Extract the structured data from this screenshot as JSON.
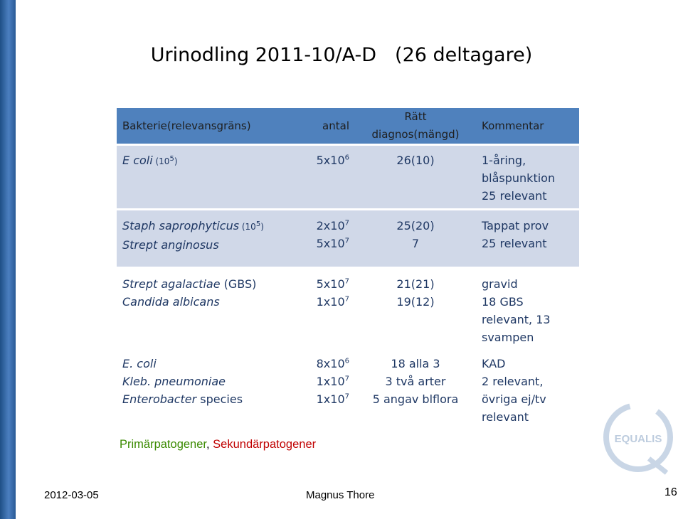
{
  "title": {
    "left": "Urinodling  2011-10/A-D",
    "right": "(26 deltagare)"
  },
  "table": {
    "headers": [
      "Bakterie(relevansgräns)",
      "antal",
      "Rätt diagnos(mängd)",
      "Kommentar"
    ],
    "r1": {
      "bact": "E coli",
      "limit": " (10",
      "limit_exp": "5",
      "limit_close": ")",
      "antal": "5x10",
      "antal_exp": "6",
      "ratt": "26(10)",
      "comment": [
        "1-åring,",
        "blåspunktion",
        "25 relevant"
      ]
    },
    "r2": {
      "bact1": "Staph saprophyticus",
      "limit1": " (10",
      "limit1_exp": "5",
      "limit1_close": ")",
      "bact2": "Strept anginosus",
      "antal1": "2x10",
      "antal1_exp": "7",
      "antal2": "5x10",
      "antal2_exp": "7",
      "ratt1": "25(20)",
      "ratt2": "7",
      "comment": [
        "Tappat prov",
        "25 relevant"
      ]
    },
    "r3": {
      "bact1": "Strept agalactiae",
      "bact1_suffix": " (GBS)",
      "bact2": "Candida albicans",
      "antal1": "5x10",
      "antal1_exp": "7",
      "antal2": "1x10",
      "antal2_exp": "7",
      "ratt1": "21(21)",
      "ratt2": "19(12)",
      "comment": [
        "gravid",
        "18 GBS",
        "relevant, 13",
        "svampen"
      ]
    },
    "r4": {
      "bact1": "E. coli",
      "bact2": "Kleb. pneumoniae",
      "bact3": "Enterobacter",
      "bact3_suffix": " species",
      "antal1": "8x10",
      "antal1_exp": "6",
      "antal2": "1x10",
      "antal2_exp": "7",
      "antal3": "1x10",
      "antal3_exp": "7",
      "ratt": [
        "18 alla 3",
        "3 två arter",
        "5 angav blflora"
      ],
      "comment": [
        "KAD",
        "2 relevant,",
        "övriga ej/tv",
        "relevant"
      ]
    }
  },
  "legend": {
    "primary": "Primärpatogener",
    "separator": ", ",
    "secondary": "Sekundärpatogener"
  },
  "logo": {
    "text": "EQUALIS"
  },
  "footer": {
    "date": "2012-03-05",
    "author": "Magnus Thore",
    "page": "16"
  },
  "colors": {
    "header_bg": "#4f81bd",
    "row_bg": "#d0d8e8",
    "text": "#1f3864",
    "primary": "#3a8a00",
    "secondary": "#c00000"
  }
}
